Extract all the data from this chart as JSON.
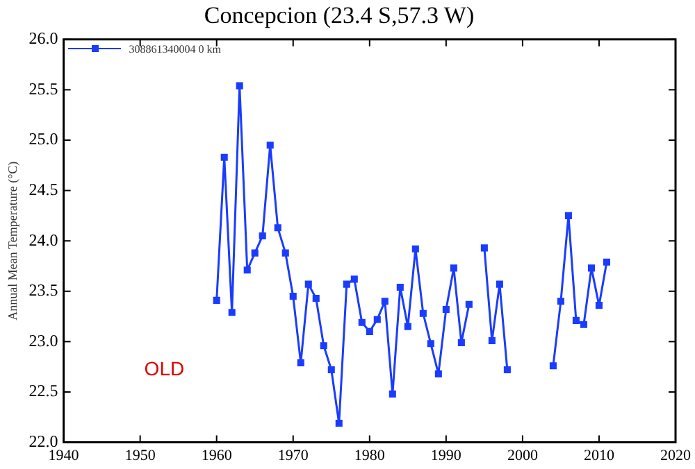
{
  "chart_data": {
    "type": "line",
    "title": "Concepcion (23.4 S,57.3 W)",
    "ylabel": "Annual Mean Temperature (°C)",
    "x": [
      1960,
      1961,
      1962,
      1963,
      1964,
      1965,
      1966,
      1967,
      1968,
      1969,
      1970,
      1971,
      1972,
      1973,
      1974,
      1975,
      1976,
      1977,
      1978,
      1979,
      1980,
      1981,
      1982,
      1983,
      1984,
      1985,
      1986,
      1987,
      1988,
      1989,
      1990,
      1991,
      1992,
      1993,
      1994,
      1995,
      1996,
      1997,
      1998,
      1999,
      2000,
      2001,
      2002,
      2003,
      2004,
      2005,
      2006,
      2007,
      2008,
      2009,
      2010,
      2011
    ],
    "series": [
      {
        "name": "308861340004 0 km",
        "color": "#1a3cff",
        "values": [
          23.41,
          24.83,
          23.29,
          25.54,
          23.71,
          23.88,
          24.05,
          24.95,
          24.13,
          23.88,
          23.45,
          22.79,
          23.57,
          23.43,
          22.96,
          22.72,
          22.19,
          23.57,
          23.62,
          23.19,
          23.1,
          23.22,
          23.4,
          22.48,
          23.54,
          23.15,
          23.92,
          23.28,
          22.98,
          22.68,
          23.32,
          23.73,
          22.99,
          23.37,
          null,
          23.93,
          23.01,
          23.57,
          22.72,
          null,
          null,
          null,
          null,
          null,
          22.76,
          23.4,
          24.25,
          23.21,
          23.17,
          23.73,
          23.36,
          23.79
        ]
      }
    ],
    "xlim": [
      1940,
      2020
    ],
    "xticks": [
      1940,
      1950,
      1960,
      1970,
      1980,
      1990,
      2000,
      2010,
      2020
    ],
    "ylim": [
      22,
      26
    ],
    "yticks": [
      {
        "value": 22,
        "label": "22.0"
      },
      {
        "value": 22.5,
        "label": "22.5"
      },
      {
        "value": 23,
        "label": "23.0"
      },
      {
        "value": 23.5,
        "label": "23.5"
      },
      {
        "value": 24,
        "label": "24.0"
      },
      {
        "value": 24.5,
        "label": "24.5"
      },
      {
        "value": 25,
        "label": "25.0"
      },
      {
        "value": 25.5,
        "label": "25.5"
      },
      {
        "value": 26,
        "label": "26.0"
      }
    ],
    "annotations": [
      "OLD"
    ],
    "grid": false,
    "legend": "top left",
    "marker": "square",
    "line_style": "solid"
  }
}
